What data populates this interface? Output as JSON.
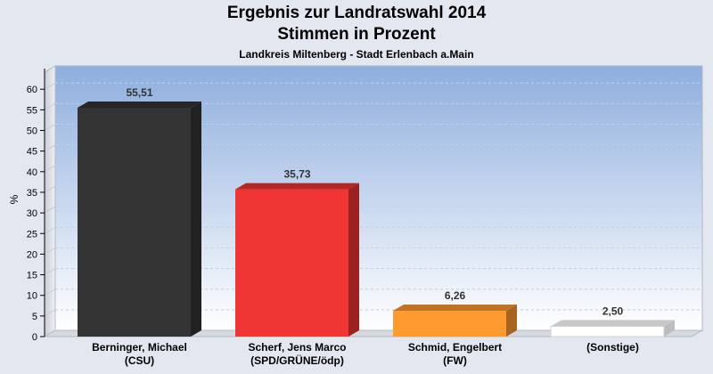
{
  "chart_data": {
    "type": "bar",
    "title": "Ergebnis zur Landratswahl 2014",
    "subtitle": "Stimmen in Prozent",
    "caption": "Landkreis Miltenberg - Stadt Erlenbach a.Main",
    "xlabel": "",
    "ylabel": "%",
    "ylim": [
      0,
      65
    ],
    "yticks": [
      0,
      5,
      10,
      15,
      20,
      25,
      30,
      35,
      40,
      45,
      50,
      55,
      60
    ],
    "grid": true,
    "categories": [
      [
        "Berninger, Michael",
        "(CSU)"
      ],
      [
        "Scherf, Jens Marco",
        "(SPD/GRÜNE/ödp)"
      ],
      [
        "Schmid, Engelbert",
        "(FW)"
      ],
      [
        "(Sonstige)"
      ]
    ],
    "values": [
      55.51,
      35.73,
      6.26,
      2.5
    ],
    "value_labels": [
      "55,51",
      "35,73",
      "6,26",
      "2,50"
    ],
    "colors": [
      "#333333",
      "#f03535",
      "#ff9a30",
      "#ffffff"
    ]
  }
}
